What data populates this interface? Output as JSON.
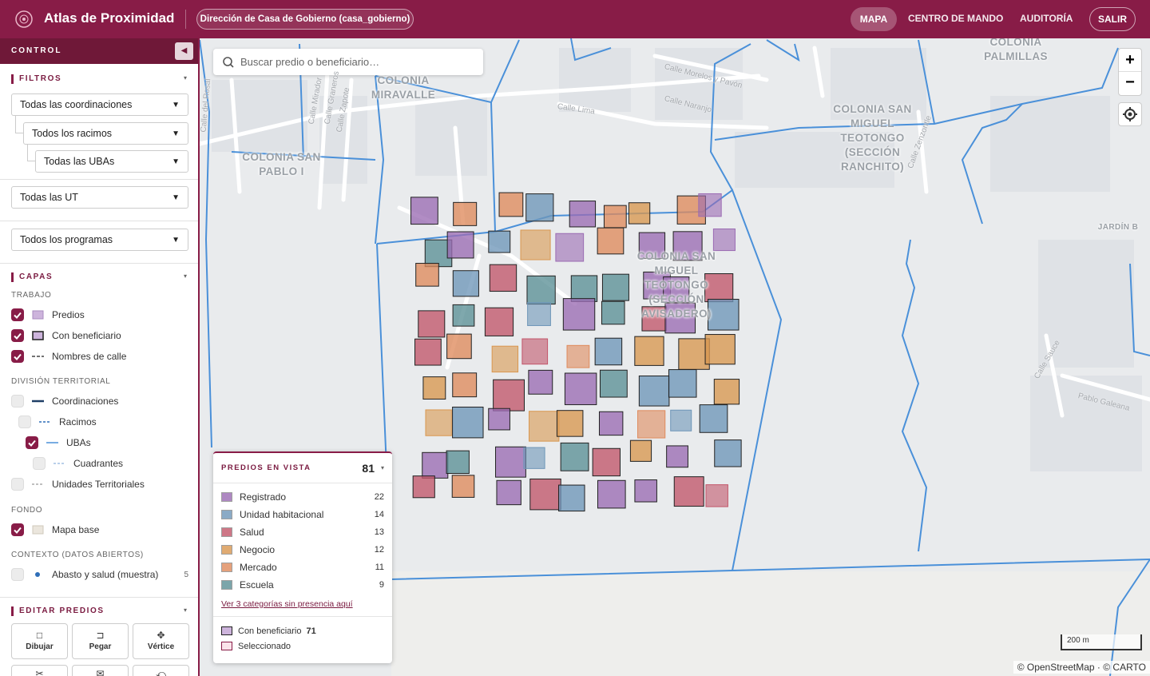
{
  "header": {
    "title": "Atlas de Proximidad",
    "context": "Dirección de Casa de Gobierno (casa_gobierno)",
    "nav": [
      "MAPA",
      "CENTRO DE MANDO",
      "AUDITORÍA"
    ],
    "logout": "SALIR"
  },
  "sidebar": {
    "title": "CONTROL",
    "filters": {
      "title": "FILTROS",
      "selects": [
        "Todas las coordinaciones",
        "Todos los racimos",
        "Todas las UBAs",
        "Todas las UT",
        "Todos los programas"
      ]
    },
    "layers": {
      "title": "CAPAS",
      "groups": [
        {
          "title": "TRABAJO",
          "items": [
            {
              "label": "Predios",
              "checked": true
            },
            {
              "label": "Con beneficiario",
              "checked": true
            },
            {
              "label": "Nombres de calle",
              "checked": true
            }
          ]
        },
        {
          "title": "DIVISIÓN TERRITORIAL",
          "items": [
            {
              "label": "Coordinaciones",
              "checked": false
            },
            {
              "label": "Racimos",
              "checked": false
            },
            {
              "label": "UBAs",
              "checked": true
            },
            {
              "label": "Cuadrantes",
              "checked": false
            },
            {
              "label": "Unidades Territoriales",
              "checked": false
            }
          ]
        },
        {
          "title": "FONDO",
          "items": [
            {
              "label": "Mapa base",
              "checked": true
            }
          ]
        },
        {
          "title": "CONTEXTO (DATOS ABIERTOS)",
          "items": [
            {
              "label": "Abasto y salud (muestra)",
              "checked": false,
              "count": 5
            }
          ]
        }
      ]
    },
    "edit": {
      "title": "EDITAR PREDIOS",
      "tools": [
        "Dibujar",
        "Pegar",
        "Vértice"
      ]
    }
  },
  "map": {
    "search_placeholder": "Buscar predio o beneficiario…",
    "places": [
      "COLONIA MIRAVALLE",
      "COLONIA SAN PABLO I",
      "COLONIA PALMILLAS",
      "COLONIA SAN MIGUEL TEOTONGO (SECCIÓN RANCHITO)",
      "COLONIA SAN MIGUEL TEOTONGO (SECCIÓN AVISADERO)",
      "JARDÍN B"
    ],
    "streets": [
      "Calle Morelos y Pavón",
      "Calle Naranjo",
      "Calle Lima",
      "Calle Mirador",
      "Calle Graneros",
      "Calle Zapote",
      "Calle del Rosal",
      "Calle Zenzontle",
      "Calle Sauce",
      "Pablo Galeana"
    ],
    "scale": "200 m",
    "attribution": "© OpenStreetMap · © CARTO"
  },
  "legend": {
    "title": "PREDIOS EN VISTA",
    "total": 81,
    "categories": [
      {
        "name": "Registrado",
        "count": 22,
        "color": "#9b6bb3"
      },
      {
        "name": "Unidad habitacional",
        "count": 14,
        "color": "#6e96b8"
      },
      {
        "name": "Salud",
        "count": 13,
        "color": "#c2566a"
      },
      {
        "name": "Negocio",
        "count": 12,
        "color": "#d9974f"
      },
      {
        "name": "Mercado",
        "count": 11,
        "color": "#df8a5c"
      },
      {
        "name": "Escuela",
        "count": 9,
        "color": "#5b8f96"
      }
    ],
    "link": "Ver 3 categorías sin presencia aquí",
    "beneficiary": {
      "label": "Con beneficiario",
      "count": 71
    },
    "selected": "Seleccionado"
  }
}
